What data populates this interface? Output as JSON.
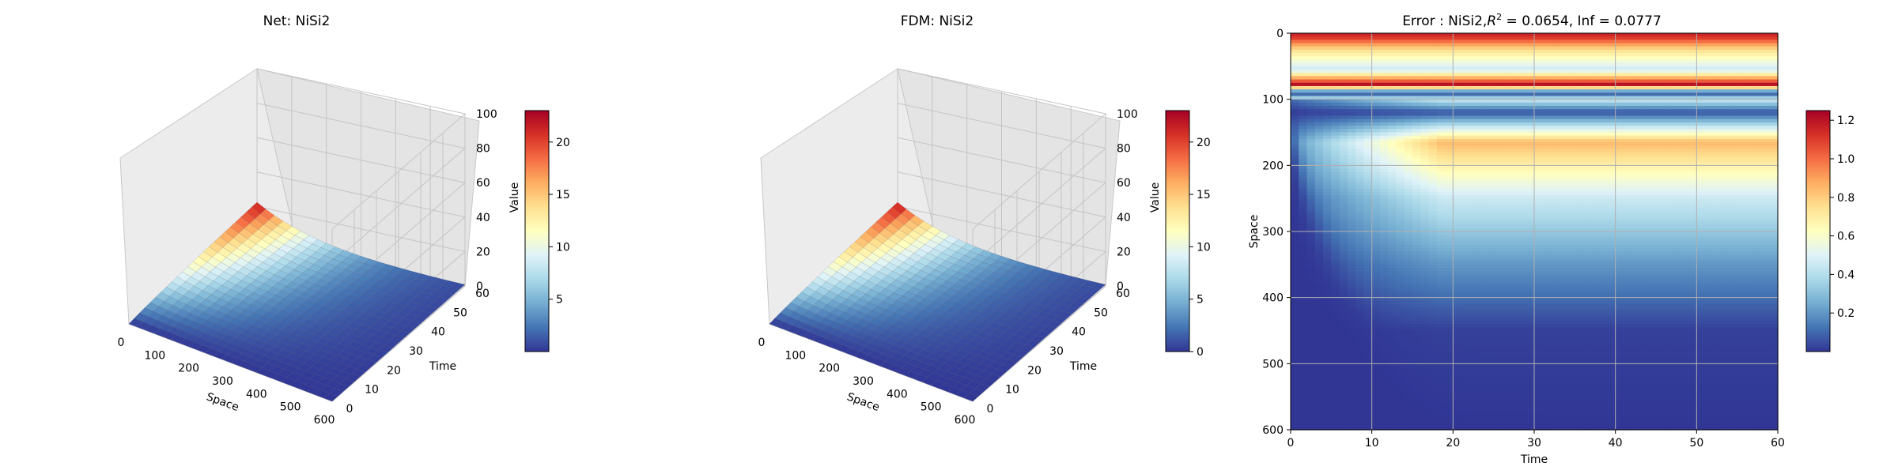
{
  "chart_data": [
    {
      "type": "surface3d",
      "title": "Net: NiSi2",
      "xlabel": "Space",
      "ylabel": "Time",
      "zlabel": "Value",
      "x_ticks": [
        "0",
        "100",
        "200",
        "300",
        "400",
        "500",
        "600"
      ],
      "y_ticks": [
        "0",
        "10",
        "20",
        "30",
        "40",
        "50",
        "60"
      ],
      "z_ticks": [
        "0",
        "20",
        "40",
        "60",
        "80",
        "100"
      ],
      "xlim": [
        0,
        600
      ],
      "ylim": [
        0,
        60
      ],
      "zlim": [
        0,
        100
      ],
      "grid": true,
      "surface": {
        "peak_value": 22.5,
        "peak_time": 60,
        "peak_space": 0,
        "space_decay": 180
      },
      "colorbar": {
        "ticks": [
          "5",
          "10",
          "15",
          "20"
        ],
        "tick_values": [
          5,
          10,
          15,
          20
        ],
        "range": [
          0,
          23
        ],
        "colormap": "RdYlBu_r"
      }
    },
    {
      "type": "surface3d",
      "title": "FDM: NiSi2",
      "xlabel": "Space",
      "ylabel": "Time",
      "zlabel": "Value",
      "x_ticks": [
        "0",
        "100",
        "200",
        "300",
        "400",
        "500",
        "600"
      ],
      "y_ticks": [
        "0",
        "10",
        "20",
        "30",
        "40",
        "50",
        "60"
      ],
      "z_ticks": [
        "0",
        "20",
        "40",
        "60",
        "80",
        "100"
      ],
      "xlim": [
        0,
        600
      ],
      "ylim": [
        0,
        60
      ],
      "zlim": [
        0,
        100
      ],
      "grid": true,
      "surface": {
        "peak_value": 22.5,
        "peak_time": 60,
        "peak_space": 0,
        "space_decay": 180
      },
      "colorbar": {
        "ticks": [
          "0",
          "5",
          "10",
          "15",
          "20"
        ],
        "tick_values": [
          0,
          5,
          10,
          15,
          20
        ],
        "range": [
          0,
          23
        ],
        "colormap": "RdYlBu_r"
      }
    },
    {
      "type": "heatmap",
      "title_prefix": "Error : NiSi2,",
      "title_r": "R",
      "title_sup": "2",
      "title_suffix": " = 0.0654, Inf = 0.0777",
      "xlabel": "Time",
      "ylabel": "Space",
      "x_ticks": [
        "0",
        "10",
        "20",
        "30",
        "40",
        "50",
        "60"
      ],
      "y_ticks": [
        "0",
        "100",
        "200",
        "300",
        "400",
        "500",
        "600"
      ],
      "xlim": [
        0,
        60
      ],
      "ylim": [
        600,
        0
      ],
      "grid": true,
      "colorbar": {
        "ticks": [
          "0.2",
          "0.4",
          "0.6",
          "0.8",
          "1.0",
          "1.2"
        ],
        "tick_values": [
          0.2,
          0.4,
          0.6,
          0.8,
          1.0,
          1.2
        ],
        "range": [
          0,
          1.25
        ],
        "colormap": "RdYlBu_r"
      },
      "bands": [
        {
          "space": 5,
          "value": 1.15
        },
        {
          "space": 25,
          "value": 0.75
        },
        {
          "space": 55,
          "value": 0.45
        },
        {
          "space": 78,
          "value": 1.22
        },
        {
          "space": 90,
          "value": 0.0
        },
        {
          "space": 100,
          "value": 0.45
        },
        {
          "space": 120,
          "value": 0.05
        },
        {
          "space": 165,
          "value": 0.85
        },
        {
          "space": 250,
          "value": 0.45
        },
        {
          "space": 350,
          "value": 0.2
        },
        {
          "space": 450,
          "value": 0.02
        },
        {
          "space": 600,
          "value": 0.0
        }
      ]
    }
  ]
}
